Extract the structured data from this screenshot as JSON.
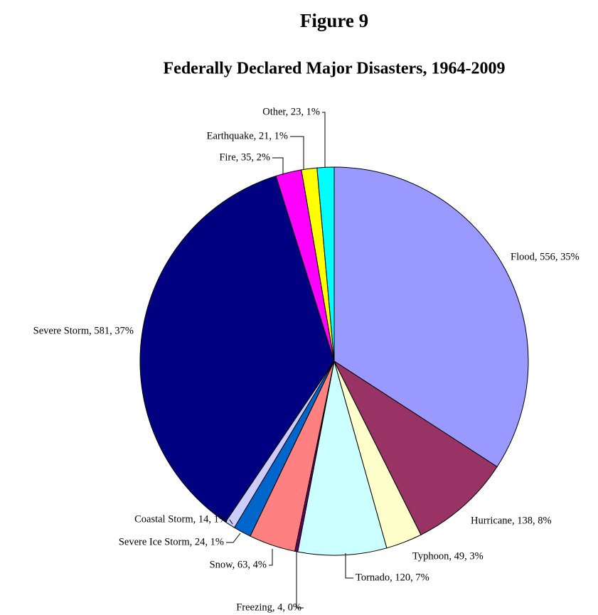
{
  "chart_data": {
    "type": "pie",
    "title": "Figure 9",
    "subtitle": "Federally Declared Major Disasters, 1964-2009",
    "categories": [
      "Flood",
      "Hurricane",
      "Typhoon",
      "Tornado",
      "Freezing",
      "Snow",
      "Severe Ice Storm",
      "Coastal Storm",
      "Severe Storm",
      "Fire",
      "Earthquake",
      "Other"
    ],
    "values": [
      556,
      138,
      49,
      120,
      4,
      63,
      24,
      14,
      581,
      35,
      21,
      23
    ],
    "value_labels": [
      "Flood, 556, 35%",
      "Hurricane, 138, 8%",
      "Typhoon, 49, 3%",
      "Tornado, 120, 7%",
      "Freezing, 4, 0%",
      "Snow, 63, 4%",
      "Severe Ice Storm, 24, 1%",
      "Coastal Storm, 14, 1%",
      "Severe Storm, 581, 37%",
      "Fire, 35, 2%",
      "Earthquake, 21, 1%",
      "Other, 23, 1%"
    ],
    "colors": [
      "#9999ff",
      "#993366",
      "#ffffcc",
      "#ccffff",
      "#660066",
      "#ff8080",
      "#0066cc",
      "#ccccff",
      "#000080",
      "#ff00ff",
      "#ffff00",
      "#00ffff"
    ]
  }
}
